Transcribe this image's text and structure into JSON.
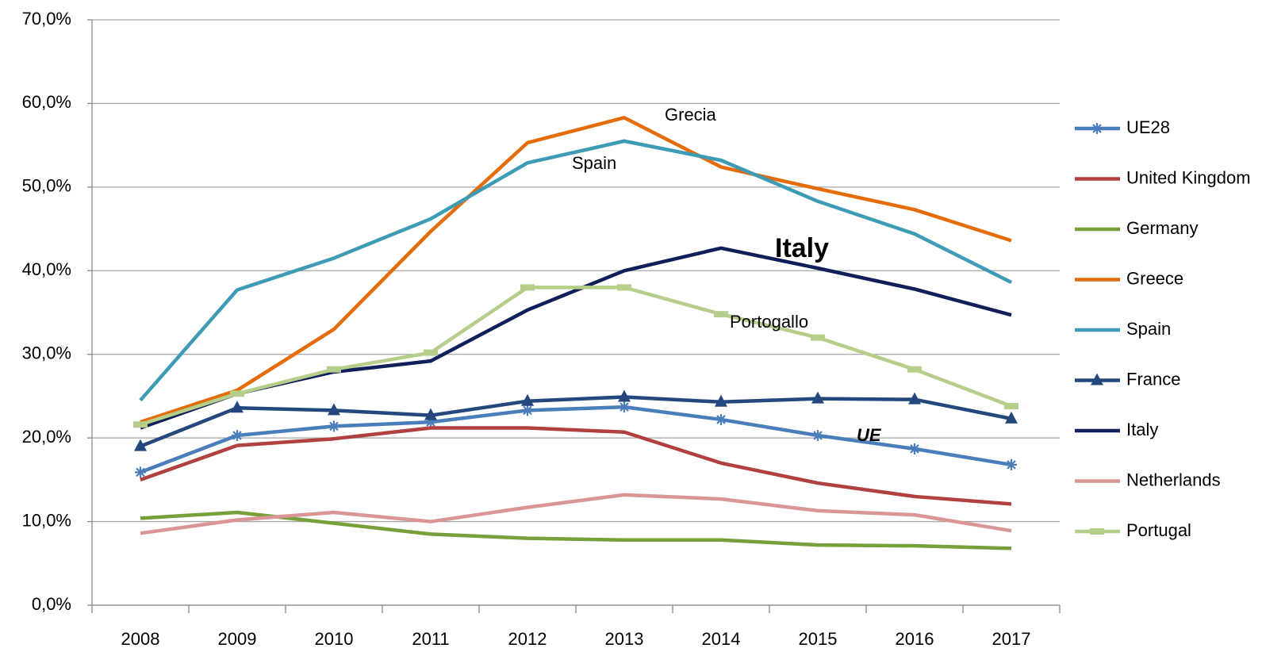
{
  "chart_data": {
    "type": "line",
    "categories": [
      "2008",
      "2009",
      "2010",
      "2011",
      "2012",
      "2013",
      "2014",
      "2015",
      "2016",
      "2017"
    ],
    "ylim": [
      0,
      70
    ],
    "yticks": [
      {
        "value": 0,
        "label": "0,0%"
      },
      {
        "value": 10,
        "label": "10,0%"
      },
      {
        "value": 20,
        "label": "20,0%"
      },
      {
        "value": 30,
        "label": "30,0%"
      },
      {
        "value": 40,
        "label": "40,0%"
      },
      {
        "value": 50,
        "label": "50,0%"
      },
      {
        "value": 60,
        "label": "60,0%"
      },
      {
        "value": 70,
        "label": "70,0%"
      }
    ],
    "grid": true,
    "legend": "right",
    "series": [
      {
        "name": "UE28",
        "color": "#4a7ebb",
        "marker": "asterisk",
        "values": [
          15.9,
          20.3,
          21.4,
          21.9,
          23.3,
          23.7,
          22.2,
          20.3,
          18.7,
          16.8
        ]
      },
      {
        "name": "United Kingdom",
        "color": "#b0413e",
        "values": [
          15.0,
          19.1,
          19.9,
          21.2,
          21.2,
          20.7,
          17.0,
          14.6,
          13.0,
          12.1
        ]
      },
      {
        "name": "Germany",
        "color": "#77a03a",
        "values": [
          10.4,
          11.1,
          9.8,
          8.5,
          8.0,
          7.8,
          7.8,
          7.2,
          7.1,
          6.8
        ]
      },
      {
        "name": "Greece",
        "color": "#e46c0a",
        "values": [
          21.9,
          25.7,
          33.0,
          44.7,
          55.3,
          58.3,
          52.4,
          49.8,
          47.3,
          43.6
        ]
      },
      {
        "name": "Spain",
        "color": "#3e9bb5",
        "values": [
          24.5,
          37.7,
          41.5,
          46.2,
          52.9,
          55.5,
          53.2,
          48.3,
          44.4,
          38.6
        ]
      },
      {
        "name": "France",
        "color": "#24487e",
        "marker": "triangle",
        "values": [
          19.0,
          23.6,
          23.3,
          22.7,
          24.4,
          24.9,
          24.3,
          24.7,
          24.6,
          22.3
        ]
      },
      {
        "name": "Italy",
        "color": "#0f1f5a",
        "values": [
          21.2,
          25.3,
          27.9,
          29.2,
          35.3,
          40.0,
          42.7,
          40.3,
          37.8,
          34.7
        ]
      },
      {
        "name": "Netherlands",
        "color": "#d99694",
        "values": [
          8.6,
          10.2,
          11.1,
          10.0,
          11.7,
          13.2,
          12.7,
          11.3,
          10.8,
          8.9
        ]
      },
      {
        "name": "Portugal",
        "color": "#b5cf8a",
        "marker": "square",
        "values": [
          21.6,
          25.3,
          28.2,
          30.2,
          38.0,
          38.0,
          34.8,
          32.0,
          28.2,
          23.8
        ]
      }
    ],
    "annotations": [
      "Grecia",
      "Spain",
      "Italy",
      "Portogallo",
      "UE"
    ]
  }
}
